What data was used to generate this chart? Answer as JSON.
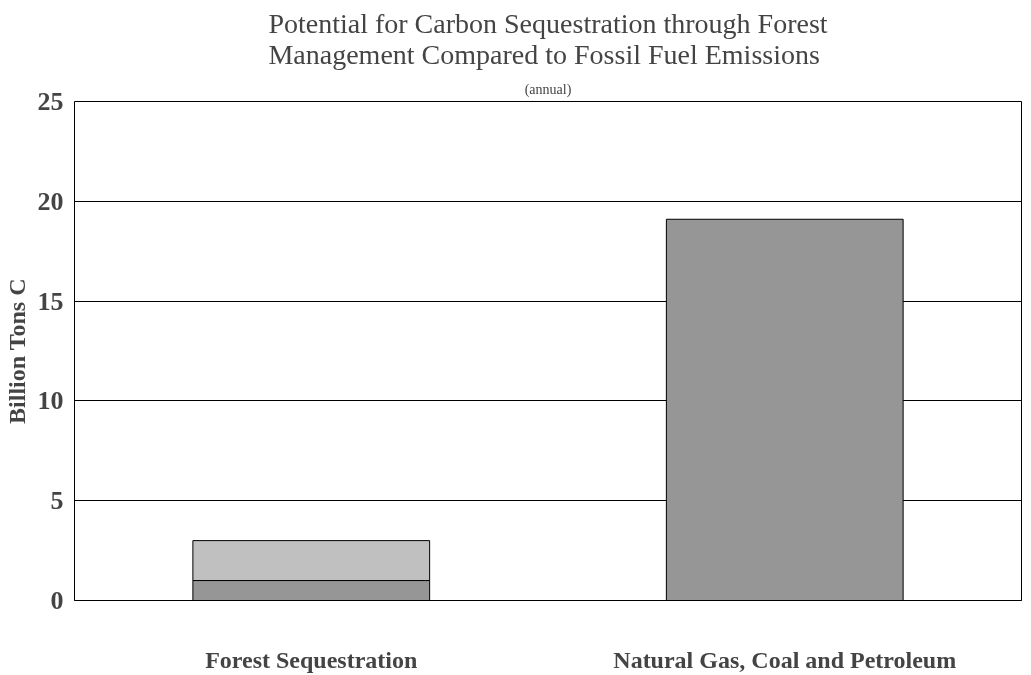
{
  "chart_data": {
    "type": "bar",
    "title": "Potential for Carbon Sequestration through Forest Management Compared to Fossil Fuel Emissions",
    "subtitle": "(annual)",
    "ylabel": "Billion Tons C",
    "categories": [
      "Forest Sequestration",
      "Natural Gas, Coal and Petroleum"
    ],
    "stacked": true,
    "series": [
      {
        "color": "#969696",
        "values": [
          1,
          19.1
        ]
      },
      {
        "color": "#c0c0c0",
        "values": [
          2,
          0
        ]
      }
    ],
    "ylim": [
      0,
      25
    ],
    "yticks": [
      0,
      5,
      10,
      15,
      20,
      25
    ],
    "grid": "y"
  }
}
